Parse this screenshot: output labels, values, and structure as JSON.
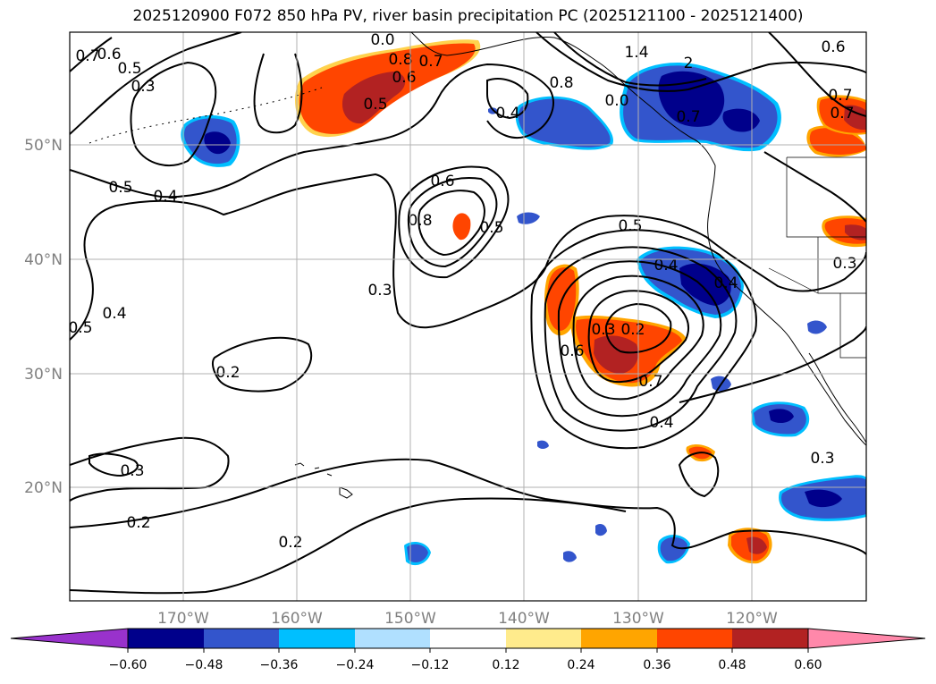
{
  "title": "2025120900 F072 850 hPa PV, river basin precipitation PC (2025121100 - 2025121400)",
  "map": {
    "lon_labels": [
      "170°W",
      "160°W",
      "150°W",
      "140°W",
      "130°W",
      "120°W"
    ],
    "lat_labels": [
      "50°N",
      "40°N",
      "30°N",
      "20°N"
    ],
    "contour_labels": [
      "0.7",
      "0.6",
      "0.5",
      "0.3",
      "0.5",
      "0.4",
      "0.0",
      "0.8",
      "0.7",
      "0.6",
      "0.5",
      "0.4",
      "0.8",
      "0.0",
      "1.4",
      "2",
      "0.6",
      "0.7",
      "0.7",
      "0.7",
      "0.8",
      "0.6",
      "0.5",
      "0.4",
      "0.5",
      "0.3",
      "0.5",
      "0.4",
      "0.2",
      "0.4",
      "0.3",
      "0.2",
      "0.6",
      "0.7",
      "0.4",
      "0.3",
      "0.3",
      "0.2",
      "0.2",
      "0.3"
    ]
  },
  "colorbar": {
    "colors": [
      "#9932cc",
      "#00008b",
      "#3355cc",
      "#00bfff",
      "#b0e0ff",
      "#ffffff",
      "#ffeb8c",
      "#ffa500",
      "#ff4500",
      "#b22222",
      "#ff88aa"
    ],
    "tick_labels": [
      "−0.60",
      "−0.48",
      "−0.36",
      "−0.24",
      "−0.12",
      "0.12",
      "0.24",
      "0.36",
      "0.48",
      "0.60"
    ]
  }
}
